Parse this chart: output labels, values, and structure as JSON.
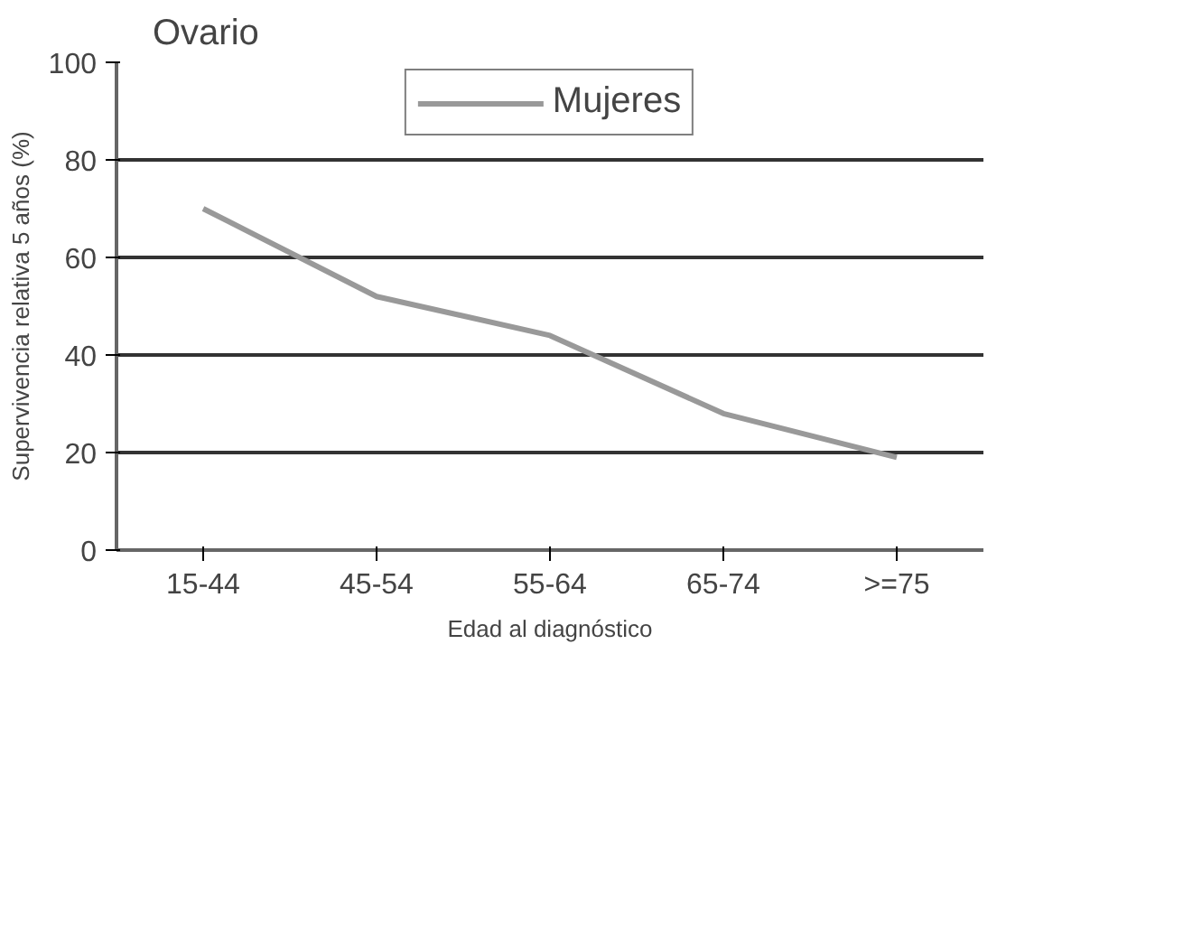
{
  "chart_data": {
    "type": "line",
    "title": "Ovario",
    "xlabel": "Edad al diagnóstico",
    "ylabel": "Supervivencia relativa 5 años (%)",
    "categories": [
      "15-44",
      "45-54",
      "55-64",
      "65-74",
      ">=75"
    ],
    "series": [
      {
        "name": "Mujeres",
        "color": "#999999",
        "values": [
          70,
          52,
          44,
          28,
          19
        ]
      }
    ],
    "ylim": [
      0,
      100
    ],
    "yticks": [
      0,
      20,
      40,
      60,
      80,
      100
    ],
    "grid": "y",
    "legend": "top",
    "marker": "none",
    "line_style": "solid"
  }
}
